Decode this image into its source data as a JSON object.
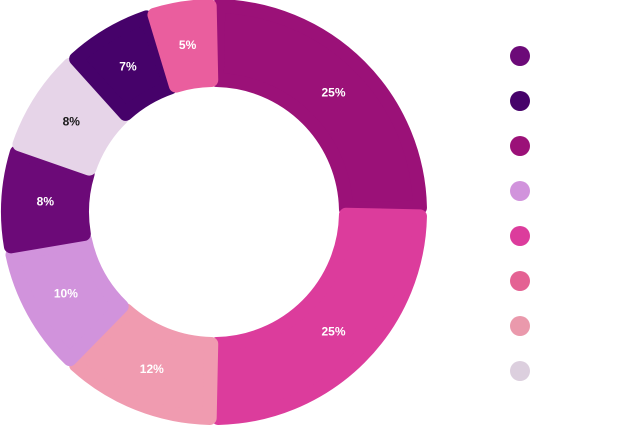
{
  "chart_data": {
    "type": "pie",
    "variant": "donut",
    "title": "",
    "slices": [
      {
        "value": 25,
        "label": "25%",
        "color": "#9b1178",
        "label_color": "#ffffff"
      },
      {
        "value": 25,
        "label": "25%",
        "color": "#dc3c9c",
        "label_color": "#ffffff"
      },
      {
        "value": 12,
        "label": "12%",
        "color": "#f09bb0",
        "label_color": "#ffffff"
      },
      {
        "value": 10,
        "label": "10%",
        "color": "#d193dc",
        "label_color": "#ffffff"
      },
      {
        "value": 8,
        "label": "8%",
        "color": "#6c0a78",
        "label_color": "#ffffff"
      },
      {
        "value": 8,
        "label": "8%",
        "color": "#e6d4e8",
        "label_color": "#1a1a1a"
      },
      {
        "value": 7,
        "label": "7%",
        "color": "#46026a",
        "label_color": "#ffffff"
      },
      {
        "value": 5,
        "label": "5%",
        "color": "#ea5e9e",
        "label_color": "#ffffff"
      }
    ],
    "legend": {
      "placement": "right",
      "entries": [
        {
          "color": "#6c0a78"
        },
        {
          "color": "#46026a"
        },
        {
          "color": "#9b1178"
        },
        {
          "color": "#d193dc"
        },
        {
          "color": "#dc3c9c"
        },
        {
          "color": "#e46293"
        },
        {
          "color": "#ea99ac"
        },
        {
          "color": "#dccfde"
        }
      ]
    }
  }
}
